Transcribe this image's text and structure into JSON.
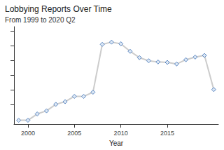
{
  "chart_data": {
    "type": "line",
    "title": "Lobbying Reports Over Time",
    "subtitle": "From 1999 to 2020 Q2",
    "x_label": "Year",
    "x": [
      1999,
      2000,
      2001,
      2002,
      2003,
      2004,
      2005,
      2006,
      2007,
      2008,
      2009,
      2010,
      2011,
      2012,
      2013,
      2014,
      2015,
      2016,
      2017,
      2018,
      2019,
      2020
    ],
    "values": [
      19600,
      19600,
      23900,
      26000,
      30400,
      32200,
      35800,
      35800,
      38600,
      71000,
      72500,
      71400,
      66300,
      62000,
      59900,
      59100,
      58800,
      57700,
      60600,
      62400,
      63500,
      40400
    ],
    "color": "#cccccc",
    "marker": "diamond",
    "line_style": "solid",
    "xlim": [
      1998.5,
      2020.5
    ],
    "xticks": [
      2000,
      2005,
      2010,
      2015
    ],
    "ylim": [
      17000,
      83000
    ],
    "yticks": [
      30000,
      40000,
      50000,
      60000,
      70000,
      80000
    ],
    "grid": false,
    "tick_labels": "x"
  }
}
